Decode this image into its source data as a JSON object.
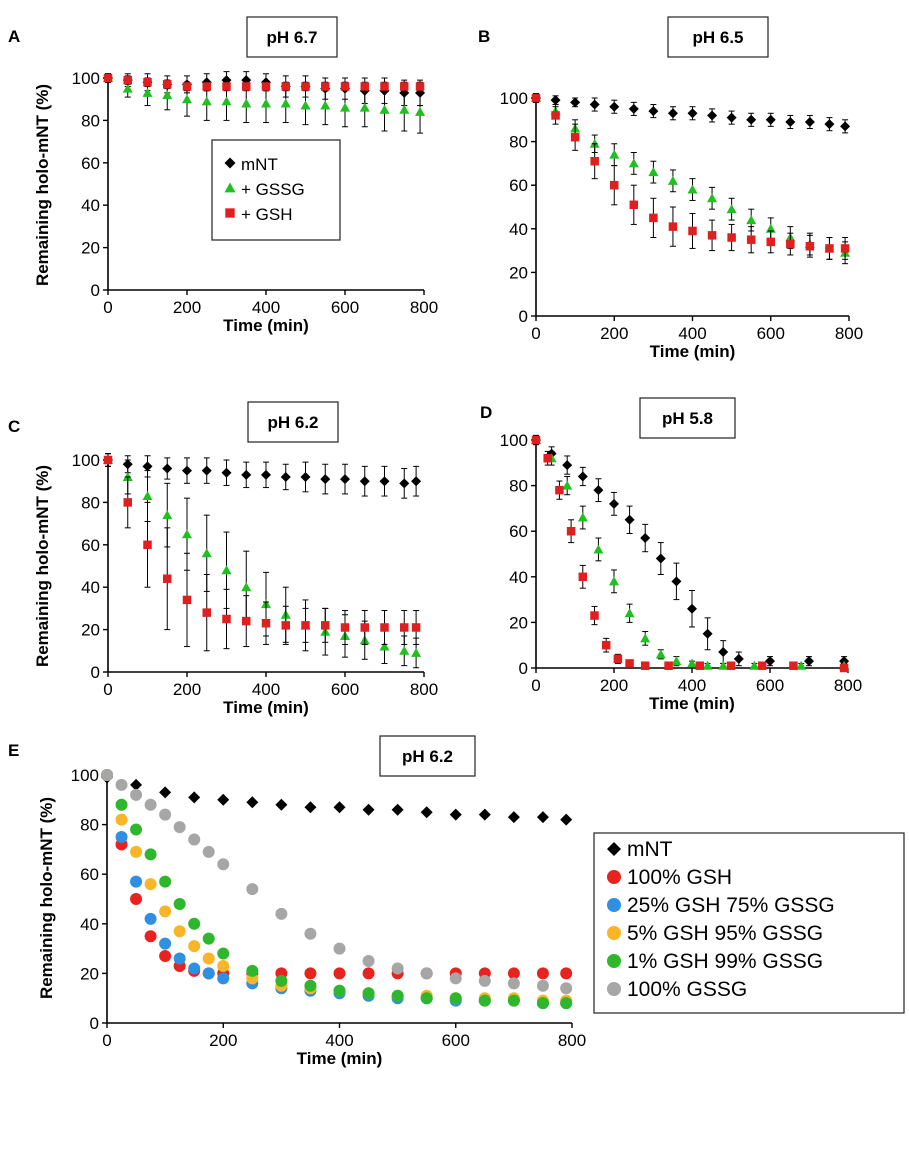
{
  "chart_data": [
    {
      "panel": "A",
      "type": "scatter",
      "title": "pH 6.7",
      "xlabel": "Time (min)",
      "ylabel": "Remaining  holo-mNT  (%)",
      "xlim": [
        0,
        800
      ],
      "ylim": [
        0,
        100
      ],
      "xticks": [
        "0",
        "200",
        "400",
        "600",
        "800"
      ],
      "yticks": [
        "0",
        "20",
        "40",
        "60",
        "80",
        "100"
      ],
      "legend": "inside-center",
      "error_bars": true,
      "series": [
        {
          "name": "mNT",
          "marker": "diamond",
          "color": "#000000",
          "x": [
            0,
            50,
            100,
            150,
            200,
            250,
            300,
            350,
            400,
            450,
            500,
            550,
            600,
            650,
            700,
            750,
            790
          ],
          "y": [
            100,
            99,
            98,
            97,
            97,
            98,
            99,
            99,
            98,
            96,
            96,
            95,
            95,
            94,
            94,
            93,
            93
          ],
          "err": [
            2,
            3,
            4,
            4,
            4,
            4,
            4,
            4,
            4,
            5,
            5,
            5,
            5,
            6,
            6,
            6,
            6
          ]
        },
        {
          "name": "+ GSSG",
          "marker": "triangle",
          "color": "#20c020",
          "x": [
            0,
            50,
            100,
            150,
            200,
            250,
            300,
            350,
            400,
            450,
            500,
            550,
            600,
            650,
            700,
            750,
            790
          ],
          "y": [
            100,
            95,
            93,
            92,
            90,
            89,
            89,
            88,
            88,
            88,
            87,
            87,
            86,
            86,
            85,
            85,
            84
          ],
          "err": [
            2,
            4,
            6,
            7,
            8,
            9,
            9,
            9,
            9,
            9,
            9,
            9,
            9,
            9,
            10,
            10,
            10
          ]
        },
        {
          "name": "+ GSH",
          "marker": "square",
          "color": "#e02020",
          "x": [
            0,
            50,
            100,
            150,
            200,
            250,
            300,
            350,
            400,
            450,
            500,
            550,
            600,
            650,
            700,
            750,
            790
          ],
          "y": [
            100,
            99,
            98,
            97,
            96,
            96,
            96,
            96,
            96,
            96,
            96,
            96,
            96,
            96,
            96,
            96,
            96
          ],
          "err": [
            2,
            2,
            2,
            2,
            2,
            2,
            2,
            2,
            2,
            2,
            2,
            2,
            2,
            2,
            2,
            2,
            2
          ]
        }
      ]
    },
    {
      "panel": "B",
      "type": "scatter",
      "title": "pH 6.5",
      "xlabel": "Time (min)",
      "ylabel": "",
      "xlim": [
        0,
        800
      ],
      "ylim": [
        0,
        100
      ],
      "xticks": [
        "0",
        "200",
        "400",
        "600",
        "800"
      ],
      "yticks": [
        "0",
        "20",
        "40",
        "60",
        "80",
        "100"
      ],
      "error_bars": true,
      "series": [
        {
          "name": "mNT",
          "marker": "diamond",
          "color": "#000000",
          "x": [
            0,
            50,
            100,
            150,
            200,
            250,
            300,
            350,
            400,
            450,
            500,
            550,
            600,
            650,
            700,
            750,
            790
          ],
          "y": [
            100,
            99,
            98,
            97,
            96,
            95,
            94,
            93,
            93,
            92,
            91,
            90,
            90,
            89,
            89,
            88,
            87
          ],
          "err": [
            2,
            2,
            2,
            3,
            3,
            3,
            3,
            3,
            3,
            3,
            3,
            3,
            3,
            3,
            3,
            3,
            3
          ]
        },
        {
          "name": "+ GSSG",
          "marker": "triangle",
          "color": "#20c020",
          "x": [
            0,
            50,
            100,
            150,
            200,
            250,
            300,
            350,
            400,
            450,
            500,
            550,
            600,
            650,
            700,
            750,
            790
          ],
          "y": [
            100,
            94,
            86,
            79,
            74,
            70,
            66,
            62,
            58,
            54,
            49,
            44,
            40,
            36,
            33,
            31,
            29
          ],
          "err": [
            2,
            3,
            4,
            4,
            5,
            5,
            5,
            5,
            5,
            5,
            5,
            5,
            5,
            5,
            5,
            5,
            5
          ]
        },
        {
          "name": "+ GSH",
          "marker": "square",
          "color": "#e02020",
          "x": [
            0,
            50,
            100,
            150,
            200,
            250,
            300,
            350,
            400,
            450,
            500,
            550,
            600,
            650,
            700,
            750,
            790
          ],
          "y": [
            100,
            92,
            82,
            71,
            60,
            51,
            45,
            41,
            39,
            37,
            36,
            35,
            34,
            33,
            32,
            31,
            31
          ],
          "err": [
            2,
            4,
            6,
            8,
            9,
            9,
            9,
            9,
            8,
            7,
            6,
            6,
            5,
            5,
            5,
            5,
            5
          ]
        }
      ]
    },
    {
      "panel": "C",
      "type": "scatter",
      "title": "pH 6.2",
      "xlabel": "Time (min)",
      "ylabel": "Remaining holo-mNT (%)",
      "xlim": [
        0,
        800
      ],
      "ylim": [
        0,
        100
      ],
      "xticks": [
        "0",
        "200",
        "400",
        "600",
        "800"
      ],
      "yticks": [
        "0",
        "20",
        "40",
        "60",
        "80",
        "100"
      ],
      "error_bars": true,
      "series": [
        {
          "name": "mNT",
          "marker": "diamond",
          "color": "#000000",
          "x": [
            0,
            50,
            100,
            150,
            200,
            250,
            300,
            350,
            400,
            450,
            500,
            550,
            600,
            650,
            700,
            750,
            780
          ],
          "y": [
            100,
            98,
            97,
            96,
            95,
            95,
            94,
            93,
            93,
            92,
            92,
            91,
            91,
            90,
            90,
            89,
            90
          ],
          "err": [
            3,
            4,
            5,
            5,
            6,
            6,
            6,
            6,
            6,
            6,
            7,
            7,
            7,
            7,
            7,
            7,
            7
          ]
        },
        {
          "name": "+ GSSG",
          "marker": "triangle",
          "color": "#20c020",
          "x": [
            0,
            50,
            100,
            150,
            200,
            250,
            300,
            350,
            400,
            450,
            500,
            550,
            600,
            650,
            700,
            750,
            780
          ],
          "y": [
            100,
            92,
            83,
            74,
            65,
            56,
            48,
            40,
            32,
            27,
            22,
            19,
            17,
            15,
            12,
            10,
            9
          ],
          "err": [
            3,
            8,
            12,
            15,
            17,
            18,
            18,
            17,
            15,
            13,
            12,
            11,
            10,
            9,
            8,
            7,
            7
          ]
        },
        {
          "name": "+ GSH",
          "marker": "square",
          "color": "#e02020",
          "x": [
            0,
            50,
            100,
            150,
            200,
            250,
            300,
            350,
            400,
            450,
            500,
            550,
            600,
            650,
            700,
            750,
            780
          ],
          "y": [
            100,
            80,
            60,
            44,
            34,
            28,
            25,
            24,
            23,
            22,
            22,
            22,
            21,
            21,
            21,
            21,
            21
          ],
          "err": [
            3,
            12,
            20,
            24,
            22,
            18,
            14,
            12,
            10,
            9,
            8,
            8,
            8,
            8,
            8,
            8,
            8
          ]
        }
      ]
    },
    {
      "panel": "D",
      "type": "scatter",
      "title": "pH 5.8",
      "xlabel": "Time (min)",
      "ylabel": "",
      "xlim": [
        0,
        800
      ],
      "ylim": [
        0,
        100
      ],
      "xticks": [
        "0",
        "200",
        "400",
        "600",
        "800"
      ],
      "yticks": [
        "0",
        "20",
        "40",
        "60",
        "80",
        "100"
      ],
      "error_bars": true,
      "series": [
        {
          "name": "mNT",
          "marker": "diamond",
          "color": "#000000",
          "x": [
            0,
            40,
            80,
            120,
            160,
            200,
            240,
            280,
            320,
            360,
            400,
            440,
            480,
            520,
            600,
            700,
            790
          ],
          "y": [
            100,
            94,
            89,
            84,
            78,
            72,
            65,
            57,
            48,
            38,
            26,
            15,
            7,
            4,
            3,
            3,
            3
          ],
          "err": [
            2,
            3,
            4,
            4,
            5,
            5,
            6,
            6,
            7,
            8,
            8,
            7,
            5,
            3,
            2,
            2,
            2
          ]
        },
        {
          "name": "+ GSSG",
          "marker": "triangle",
          "color": "#20c020",
          "x": [
            0,
            40,
            80,
            120,
            160,
            200,
            240,
            280,
            320,
            360,
            400,
            440,
            480,
            560,
            680,
            790
          ],
          "y": [
            100,
            92,
            80,
            66,
            52,
            38,
            24,
            13,
            6,
            3,
            2,
            1,
            1,
            1,
            1,
            1
          ],
          "err": [
            2,
            3,
            4,
            5,
            5,
            5,
            4,
            3,
            2,
            2,
            1,
            1,
            1,
            1,
            1,
            1
          ]
        },
        {
          "name": "+ GSH",
          "marker": "square",
          "color": "#e02020",
          "x": [
            0,
            30,
            60,
            90,
            120,
            150,
            180,
            210,
            240,
            280,
            340,
            420,
            500,
            580,
            660,
            790
          ],
          "y": [
            100,
            92,
            78,
            60,
            40,
            23,
            10,
            4,
            2,
            1,
            1,
            1,
            1,
            1,
            1,
            0
          ],
          "err": [
            2,
            3,
            4,
            5,
            5,
            4,
            3,
            2,
            1,
            1,
            1,
            1,
            1,
            1,
            1,
            1
          ]
        }
      ]
    },
    {
      "panel": "E",
      "type": "scatter",
      "title": "pH 6.2",
      "xlabel": "Time (min)",
      "ylabel": "Remaining holo-mNT (%)",
      "xlim": [
        0,
        800
      ],
      "ylim": [
        0,
        100
      ],
      "xticks": [
        "0",
        "200",
        "400",
        "600",
        "800"
      ],
      "yticks": [
        "0",
        "20",
        "40",
        "60",
        "80",
        "100"
      ],
      "legend": "right",
      "error_bars": false,
      "series": [
        {
          "name": "mNT",
          "marker": "diamond",
          "color": "#000000",
          "x": [
            0,
            50,
            100,
            150,
            200,
            250,
            300,
            350,
            400,
            450,
            500,
            550,
            600,
            650,
            700,
            750,
            790
          ],
          "y": [
            99,
            96,
            93,
            91,
            90,
            89,
            88,
            87,
            87,
            86,
            86,
            85,
            84,
            84,
            83,
            83,
            82
          ]
        },
        {
          "name": "100% GSH",
          "marker": "circle",
          "color": "#e8231f",
          "x": [
            0,
            25,
            50,
            75,
            100,
            125,
            150,
            175,
            200,
            250,
            300,
            350,
            400,
            450,
            500,
            550,
            600,
            650,
            700,
            750,
            790
          ],
          "y": [
            100,
            72,
            50,
            35,
            27,
            23,
            21,
            20,
            20,
            20,
            20,
            20,
            20,
            20,
            20,
            20,
            20,
            20,
            20,
            20,
            20
          ]
        },
        {
          "name": "25% GSH 75% GSSG",
          "marker": "circle",
          "color": "#2f8fe0",
          "x": [
            0,
            25,
            50,
            75,
            100,
            125,
            150,
            175,
            200,
            250,
            300,
            350,
            400,
            450,
            500,
            550,
            600,
            650,
            700,
            750,
            790
          ],
          "y": [
            100,
            75,
            57,
            42,
            32,
            26,
            22,
            20,
            18,
            16,
            14,
            13,
            12,
            11,
            10,
            10,
            9,
            9,
            9,
            8,
            8
          ]
        },
        {
          "name": "5% GSH 95% GSSG",
          "marker": "circle",
          "color": "#f8b526",
          "x": [
            0,
            25,
            50,
            75,
            100,
            125,
            150,
            175,
            200,
            250,
            300,
            350,
            400,
            450,
            500,
            550,
            600,
            650,
            700,
            750,
            790
          ],
          "y": [
            100,
            82,
            69,
            56,
            45,
            37,
            31,
            26,
            23,
            18,
            15,
            14,
            13,
            12,
            11,
            11,
            10,
            10,
            10,
            9,
            9
          ]
        },
        {
          "name": "1% GSH 99% GSSG",
          "marker": "circle",
          "color": "#2eb62c",
          "x": [
            0,
            25,
            50,
            75,
            100,
            125,
            150,
            175,
            200,
            250,
            300,
            350,
            400,
            450,
            500,
            550,
            600,
            650,
            700,
            750,
            790
          ],
          "y": [
            100,
            88,
            78,
            68,
            57,
            48,
            40,
            34,
            28,
            21,
            17,
            15,
            13,
            12,
            11,
            10,
            10,
            9,
            9,
            8,
            8
          ]
        },
        {
          "name": "100% GSSG",
          "marker": "circle",
          "color": "#a6a6a6",
          "x": [
            0,
            25,
            50,
            75,
            100,
            125,
            150,
            175,
            200,
            250,
            300,
            350,
            400,
            450,
            500,
            550,
            600,
            650,
            700,
            750,
            790
          ],
          "y": [
            100,
            96,
            92,
            88,
            84,
            79,
            74,
            69,
            64,
            54,
            44,
            36,
            30,
            25,
            22,
            20,
            18,
            17,
            16,
            15,
            14
          ]
        }
      ]
    }
  ]
}
